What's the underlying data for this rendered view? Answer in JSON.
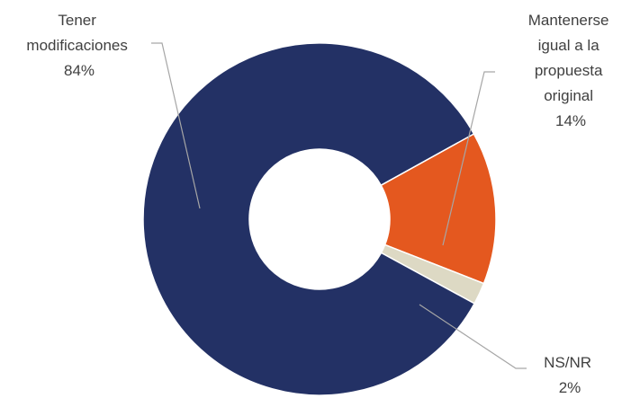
{
  "chart_data": {
    "type": "pie",
    "variant": "donut",
    "categories": [
      "Tener modificaciones",
      "Mantenerse igual a la propuesta original",
      "NS/NR"
    ],
    "values": [
      84,
      14,
      2
    ],
    "colors": [
      "#233165",
      "#e4581f",
      "#ddd9c4"
    ],
    "labels": [
      {
        "lines": [
          "Tener",
          "modificaciones"
        ],
        "value": "84%"
      },
      {
        "lines": [
          "Mantenerse",
          "igual a la",
          "propuesta",
          "original"
        ],
        "value": "14%"
      },
      {
        "lines": [
          "NS/NR"
        ],
        "value": "2%"
      }
    ],
    "legend": "none"
  }
}
